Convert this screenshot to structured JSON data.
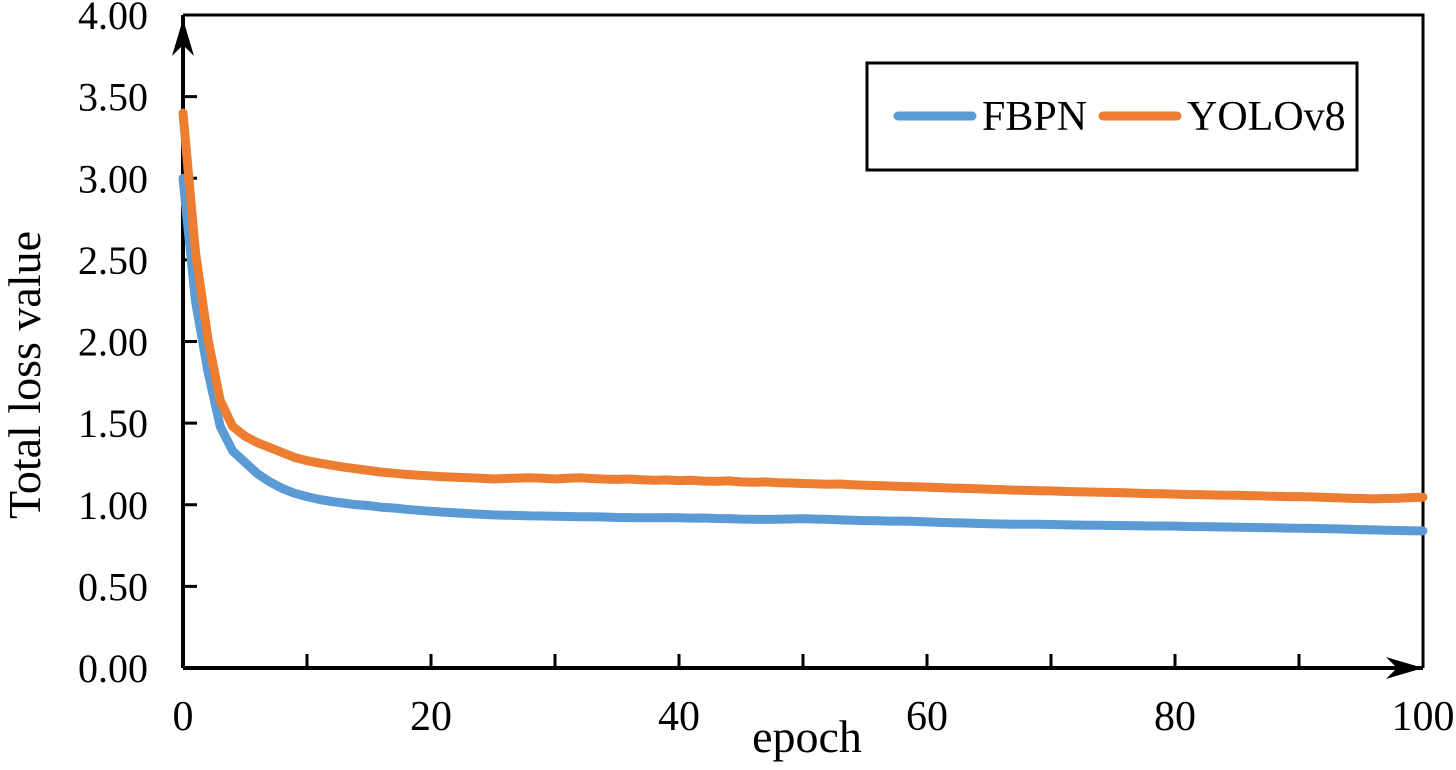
{
  "chart_data": {
    "type": "line",
    "title": "",
    "xlabel": "epoch",
    "ylabel": "Total loss value",
    "xlim": [
      0,
      100
    ],
    "ylim": [
      0.0,
      4.0
    ],
    "grid": false,
    "legend_position": "top-right-inside-box",
    "axis_color": "#000000",
    "x_tick_values": [
      0,
      20,
      40,
      60,
      80,
      100
    ],
    "x_tick_labels": [
      "0",
      "20",
      "40",
      "60",
      "80",
      "100"
    ],
    "x_minor_ticks": [
      10,
      20,
      30,
      40,
      50,
      60,
      70,
      80,
      90
    ],
    "y_tick_values": [
      0.0,
      0.5,
      1.0,
      1.5,
      2.0,
      2.5,
      3.0,
      3.5,
      4.0
    ],
    "y_tick_labels": [
      "0.00",
      "0.50",
      "1.00",
      "1.50",
      "2.00",
      "2.50",
      "3.00",
      "3.50",
      "4.00"
    ],
    "x": [
      0,
      1,
      2,
      3,
      4,
      5,
      6,
      7,
      8,
      9,
      10,
      11,
      12,
      13,
      14,
      15,
      16,
      17,
      18,
      19,
      20,
      21,
      22,
      23,
      24,
      25,
      26,
      27,
      28,
      29,
      30,
      31,
      32,
      33,
      34,
      35,
      36,
      37,
      38,
      39,
      40,
      41,
      42,
      43,
      44,
      45,
      46,
      47,
      48,
      49,
      50,
      51,
      52,
      53,
      54,
      55,
      56,
      57,
      58,
      59,
      60,
      61,
      62,
      63,
      64,
      65,
      66,
      67,
      68,
      69,
      70,
      71,
      72,
      73,
      74,
      75,
      76,
      77,
      78,
      79,
      80,
      81,
      82,
      83,
      84,
      85,
      86,
      87,
      88,
      89,
      90,
      91,
      92,
      93,
      94,
      95,
      96,
      97,
      98,
      99,
      100
    ],
    "series": [
      {
        "name": "FBPN",
        "color": "#5B9BD5",
        "values": [
          3.0,
          2.25,
          1.82,
          1.48,
          1.33,
          1.26,
          1.19,
          1.14,
          1.1,
          1.07,
          1.05,
          1.032,
          1.02,
          1.01,
          1.0,
          0.995,
          0.985,
          0.98,
          0.972,
          0.966,
          0.96,
          0.955,
          0.95,
          0.946,
          0.942,
          0.938,
          0.936,
          0.934,
          0.932,
          0.931,
          0.93,
          0.928,
          0.926,
          0.926,
          0.925,
          0.922,
          0.921,
          0.92,
          0.92,
          0.921,
          0.92,
          0.918,
          0.919,
          0.916,
          0.915,
          0.912,
          0.911,
          0.91,
          0.911,
          0.913,
          0.915,
          0.912,
          0.91,
          0.907,
          0.905,
          0.903,
          0.902,
          0.9,
          0.9,
          0.898,
          0.895,
          0.892,
          0.89,
          0.888,
          0.886,
          0.884,
          0.882,
          0.881,
          0.88,
          0.88,
          0.879,
          0.877,
          0.876,
          0.875,
          0.875,
          0.873,
          0.872,
          0.871,
          0.87,
          0.87,
          0.869,
          0.867,
          0.866,
          0.865,
          0.864,
          0.862,
          0.861,
          0.86,
          0.859,
          0.857,
          0.856,
          0.855,
          0.854,
          0.852,
          0.85,
          0.848,
          0.846,
          0.844,
          0.842,
          0.841,
          0.84
        ]
      },
      {
        "name": "YOLOv8",
        "color": "#ED7D31",
        "values": [
          3.4,
          2.55,
          2.02,
          1.64,
          1.48,
          1.42,
          1.38,
          1.35,
          1.32,
          1.29,
          1.27,
          1.255,
          1.242,
          1.23,
          1.22,
          1.21,
          1.2,
          1.193,
          1.186,
          1.181,
          1.176,
          1.172,
          1.168,
          1.165,
          1.162,
          1.158,
          1.161,
          1.163,
          1.165,
          1.162,
          1.158,
          1.162,
          1.165,
          1.161,
          1.157,
          1.155,
          1.158,
          1.153,
          1.15,
          1.152,
          1.148,
          1.15,
          1.145,
          1.143,
          1.146,
          1.14,
          1.138,
          1.14,
          1.135,
          1.133,
          1.13,
          1.128,
          1.125,
          1.127,
          1.122,
          1.12,
          1.117,
          1.115,
          1.112,
          1.11,
          1.108,
          1.105,
          1.102,
          1.1,
          1.098,
          1.095,
          1.093,
          1.09,
          1.088,
          1.086,
          1.085,
          1.082,
          1.08,
          1.078,
          1.077,
          1.075,
          1.073,
          1.07,
          1.068,
          1.067,
          1.065,
          1.063,
          1.062,
          1.06,
          1.058,
          1.058,
          1.056,
          1.054,
          1.052,
          1.05,
          1.05,
          1.048,
          1.045,
          1.043,
          1.04,
          1.038,
          1.036,
          1.038,
          1.04,
          1.044,
          1.046
        ]
      }
    ]
  }
}
